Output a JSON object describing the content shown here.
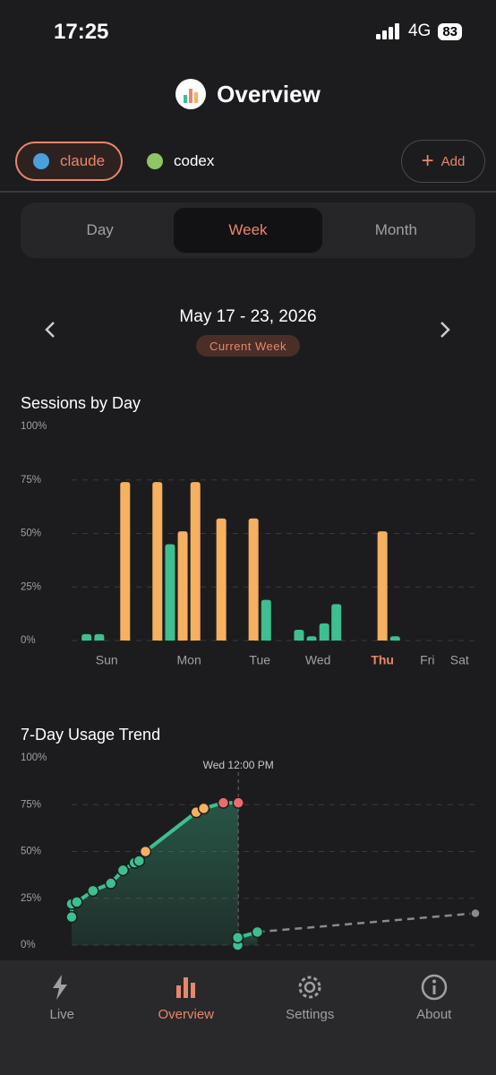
{
  "status_bar": {
    "time": "17:25",
    "network": "4G",
    "battery": "83"
  },
  "header": {
    "title": "Overview"
  },
  "providers": [
    {
      "label": "claude",
      "color": "#4a9fdc",
      "selected": true
    },
    {
      "label": "codex",
      "color": "#8cc665",
      "selected": false
    }
  ],
  "add_button": "Add",
  "period_tabs": {
    "options": [
      "Day",
      "Week",
      "Month"
    ],
    "selected": 1
  },
  "date_range": {
    "label": "May 17 - 23, 2026",
    "badge": "Current Week"
  },
  "chart_data": [
    {
      "type": "bar",
      "title": "Sessions by Day",
      "xlim": [
        0,
        7
      ],
      "xticks": [
        {
          "value": 0.61,
          "label": "Sun"
        },
        {
          "value": 2.04,
          "label": "Mon"
        },
        {
          "value": 3.27,
          "label": "Tue"
        },
        {
          "value": 4.28,
          "label": "Wed"
        },
        {
          "value": 5.4,
          "label": "Thu"
        },
        {
          "value": 6.18,
          "label": "Fri"
        },
        {
          "value": 6.74,
          "label": "Sat"
        }
      ],
      "highlight_xtick": 4,
      "ylim": [
        0,
        100
      ],
      "yticks": [
        {
          "value": 0,
          "label": "0%"
        },
        {
          "value": 25,
          "label": "25%"
        },
        {
          "value": 50,
          "label": "50%"
        },
        {
          "value": 75,
          "label": "75%"
        },
        {
          "value": 100,
          "label": "100%"
        }
      ],
      "grid": true,
      "series": [
        {
          "color": "#f5b060",
          "x": [
            0.93,
            1.49,
            1.93,
            2.15,
            2.6,
            3.16,
            5.4
          ],
          "values": [
            74,
            74,
            51,
            74,
            57,
            57,
            51
          ]
        },
        {
          "color": "#3dbf8f",
          "x": [
            0.26,
            0.48,
            1.71,
            3.38,
            3.95,
            4.17,
            4.39,
            4.6,
            5.62
          ],
          "values": [
            3,
            3,
            45,
            19,
            5,
            2,
            8,
            17,
            2
          ]
        }
      ]
    },
    {
      "type": "line",
      "title": "7-Day Usage Trend",
      "xlim": [
        0,
        7
      ],
      "ylim": [
        0,
        100
      ],
      "yticks": [
        {
          "value": 0,
          "label": "0%"
        },
        {
          "value": 25,
          "label": "25%"
        },
        {
          "value": 50,
          "label": "50%"
        },
        {
          "value": 75,
          "label": "75%"
        },
        {
          "value": 100,
          "label": "100%"
        }
      ],
      "grid": true,
      "annotation": {
        "text": "Wed 12:00 PM",
        "x": 2.89
      },
      "series": [
        {
          "color": "#3dbf8f",
          "area": true,
          "dashed": false,
          "x": [
            0,
            0,
            0.09,
            0.37,
            0.68,
            0.89,
            1.09,
            1.17,
            1.28,
            2.16,
            2.29,
            2.63,
            2.89,
            null,
            2.88,
            2.88,
            3.22
          ],
          "values": [
            15,
            22,
            23,
            29,
            33,
            40,
            44,
            45,
            50,
            71,
            73,
            76,
            76,
            null,
            0,
            4,
            7
          ],
          "point_colors": [
            "#3dbf8f",
            "#3dbf8f",
            "#3dbf8f",
            "#3dbf8f",
            "#3dbf8f",
            "#3dbf8f",
            "#3dbf8f",
            "#3dbf8f",
            "#f5b060",
            "#f5b060",
            "#f5b060",
            "#ef6b6b",
            "#ef6b6b",
            null,
            "#3dbf8f",
            "#3dbf8f",
            "#3dbf8f"
          ]
        },
        {
          "color": "#8a8a8e",
          "area": false,
          "dashed": true,
          "x": [
            3.22,
            7
          ],
          "values": [
            7,
            17
          ],
          "point_colors": [
            "#3dbf8f",
            "#8a8a8e"
          ]
        }
      ]
    }
  ],
  "nav": {
    "items": [
      "Live",
      "Overview",
      "Settings",
      "About"
    ],
    "selected": 1
  }
}
